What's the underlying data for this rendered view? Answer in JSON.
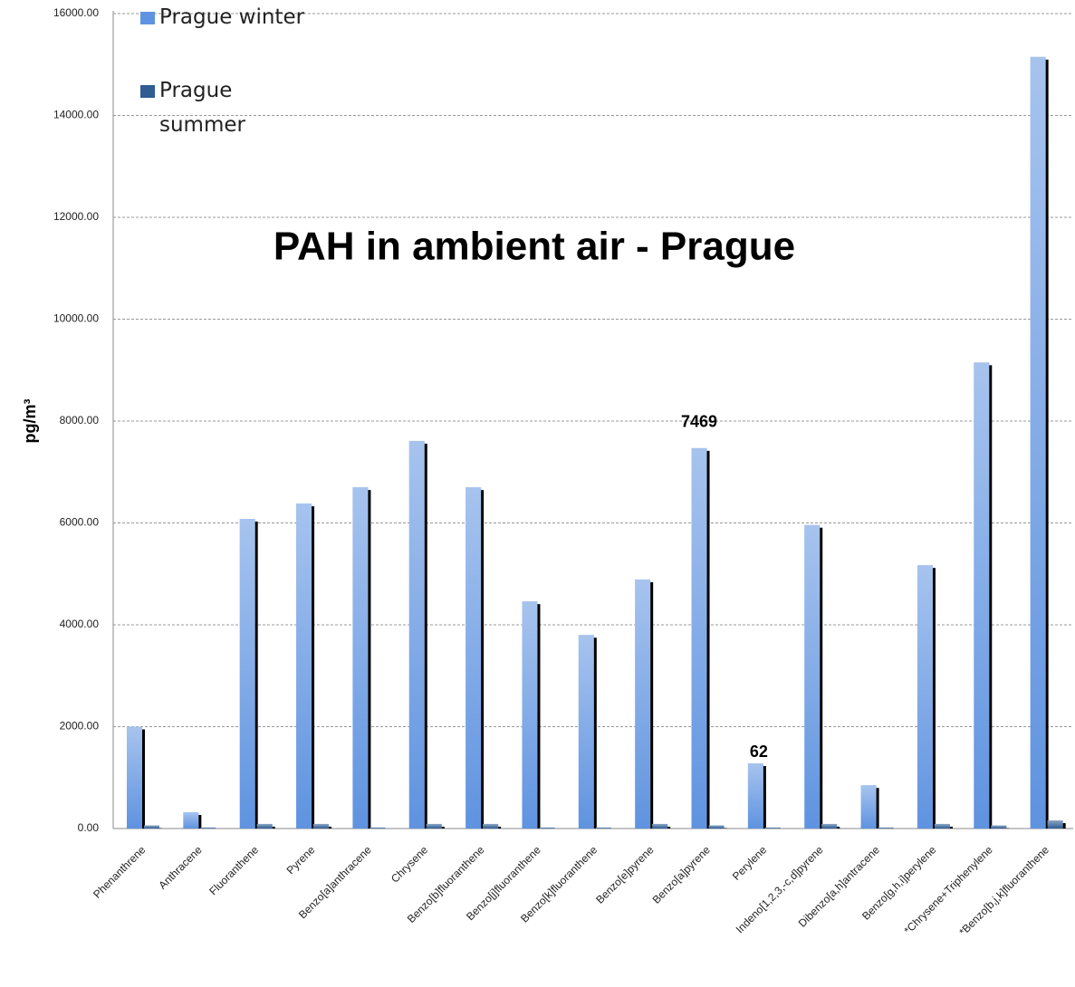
{
  "chart_data": {
    "type": "bar",
    "title": "PAH in ambient air - Prague",
    "y_label": "pg/m³",
    "categories": [
      "Phenanthrene",
      "Anthracene",
      "Fluoranthene",
      "Pyrene",
      "Benzo[a]anthracene",
      "Chrysene",
      "Benzo[b]fluoranthene",
      "Benzo[j]fluoranthene",
      "Benzo[k]fluoranthene",
      "Benzo[e]pyrene",
      "Benzo[a]pyrene",
      "Perylene",
      "Indeno[1,2,3,-c,d]pyrene",
      "Dibenzo[a,h]antracene",
      "Benzo[g,h,i]perylene",
      "*Chrysene+Triphenylene",
      "*Benzo[b,j,k]fluoranthene"
    ],
    "series": [
      {
        "name": "Prague winter",
        "color": "#5f93e0",
        "values": [
          2000,
          320,
          6080,
          6380,
          6700,
          7610,
          6700,
          4460,
          3800,
          4890,
          7469,
          1280,
          5960,
          850,
          5170,
          9150,
          15150
        ],
        "value_labels": [
          null,
          null,
          null,
          null,
          null,
          null,
          null,
          null,
          null,
          null,
          "7469",
          null,
          null,
          null,
          null,
          null,
          null
        ]
      },
      {
        "name": "Prague summer",
        "color": "#2f5d94",
        "values": [
          60,
          20,
          90,
          90,
          20,
          90,
          90,
          20,
          20,
          90,
          62,
          20,
          90,
          20,
          90,
          60,
          160
        ],
        "value_labels": [
          null,
          null,
          null,
          null,
          null,
          null,
          null,
          null,
          null,
          null,
          "62",
          null,
          null,
          null,
          null,
          null,
          null
        ]
      }
    ],
    "ylim": [
      0,
      16000
    ],
    "yticks": [
      {
        "value": 0,
        "label": "0.00"
      },
      {
        "value": 2000,
        "label": "2000.00"
      },
      {
        "value": 4000,
        "label": "4000.00"
      },
      {
        "value": 6000,
        "label": "6000.00"
      },
      {
        "value": 8000,
        "label": "8000.00"
      },
      {
        "value": 10000,
        "label": "10000.00"
      },
      {
        "value": 12000,
        "label": "12000.00"
      },
      {
        "value": 14000,
        "label": "14000.00"
      },
      {
        "value": 16000,
        "label": "16000.00"
      }
    ],
    "grid": true,
    "legend": "top-left"
  }
}
